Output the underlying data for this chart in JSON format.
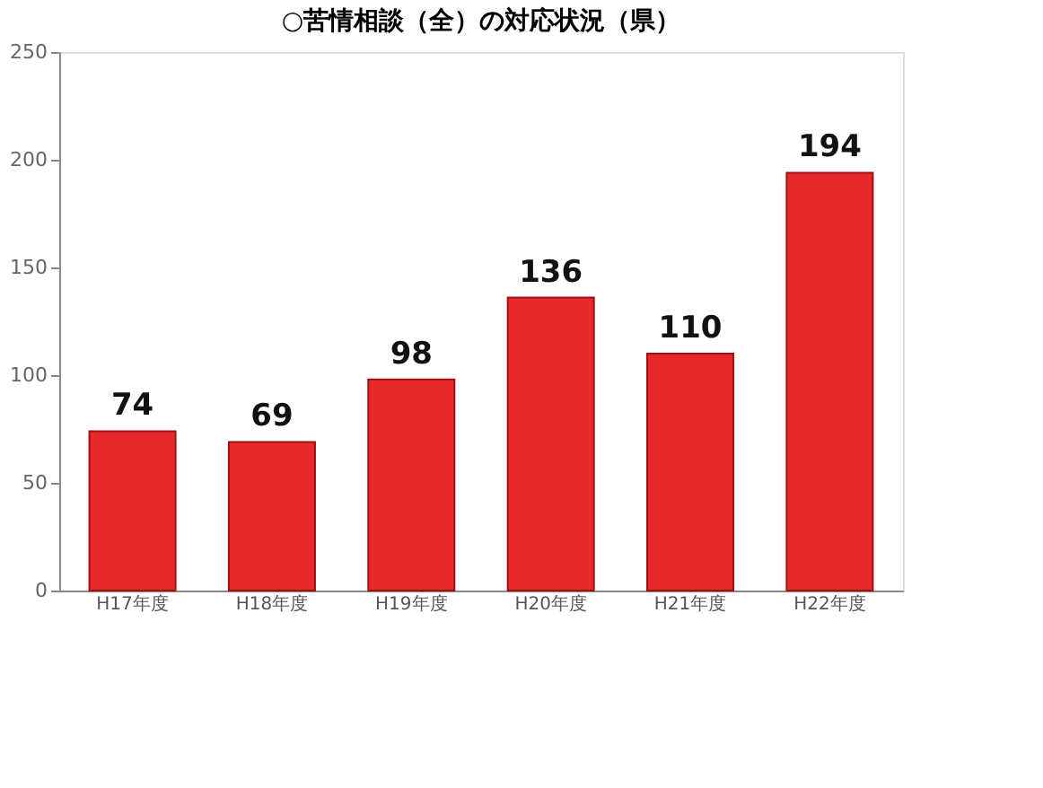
{
  "chart_data": {
    "type": "bar",
    "title": "○苦情相談（全）の対応状況（県）",
    "categories": [
      "H17年度",
      "H18年度",
      "H19年度",
      "H20年度",
      "H21年度",
      "H22年度"
    ],
    "values": [
      74,
      69,
      98,
      136,
      110,
      194
    ],
    "color": "#e8282a",
    "ylim": [
      0,
      250
    ],
    "yticks": [
      0,
      50,
      100,
      150,
      200,
      250
    ],
    "grid": false,
    "data_labels": true
  }
}
